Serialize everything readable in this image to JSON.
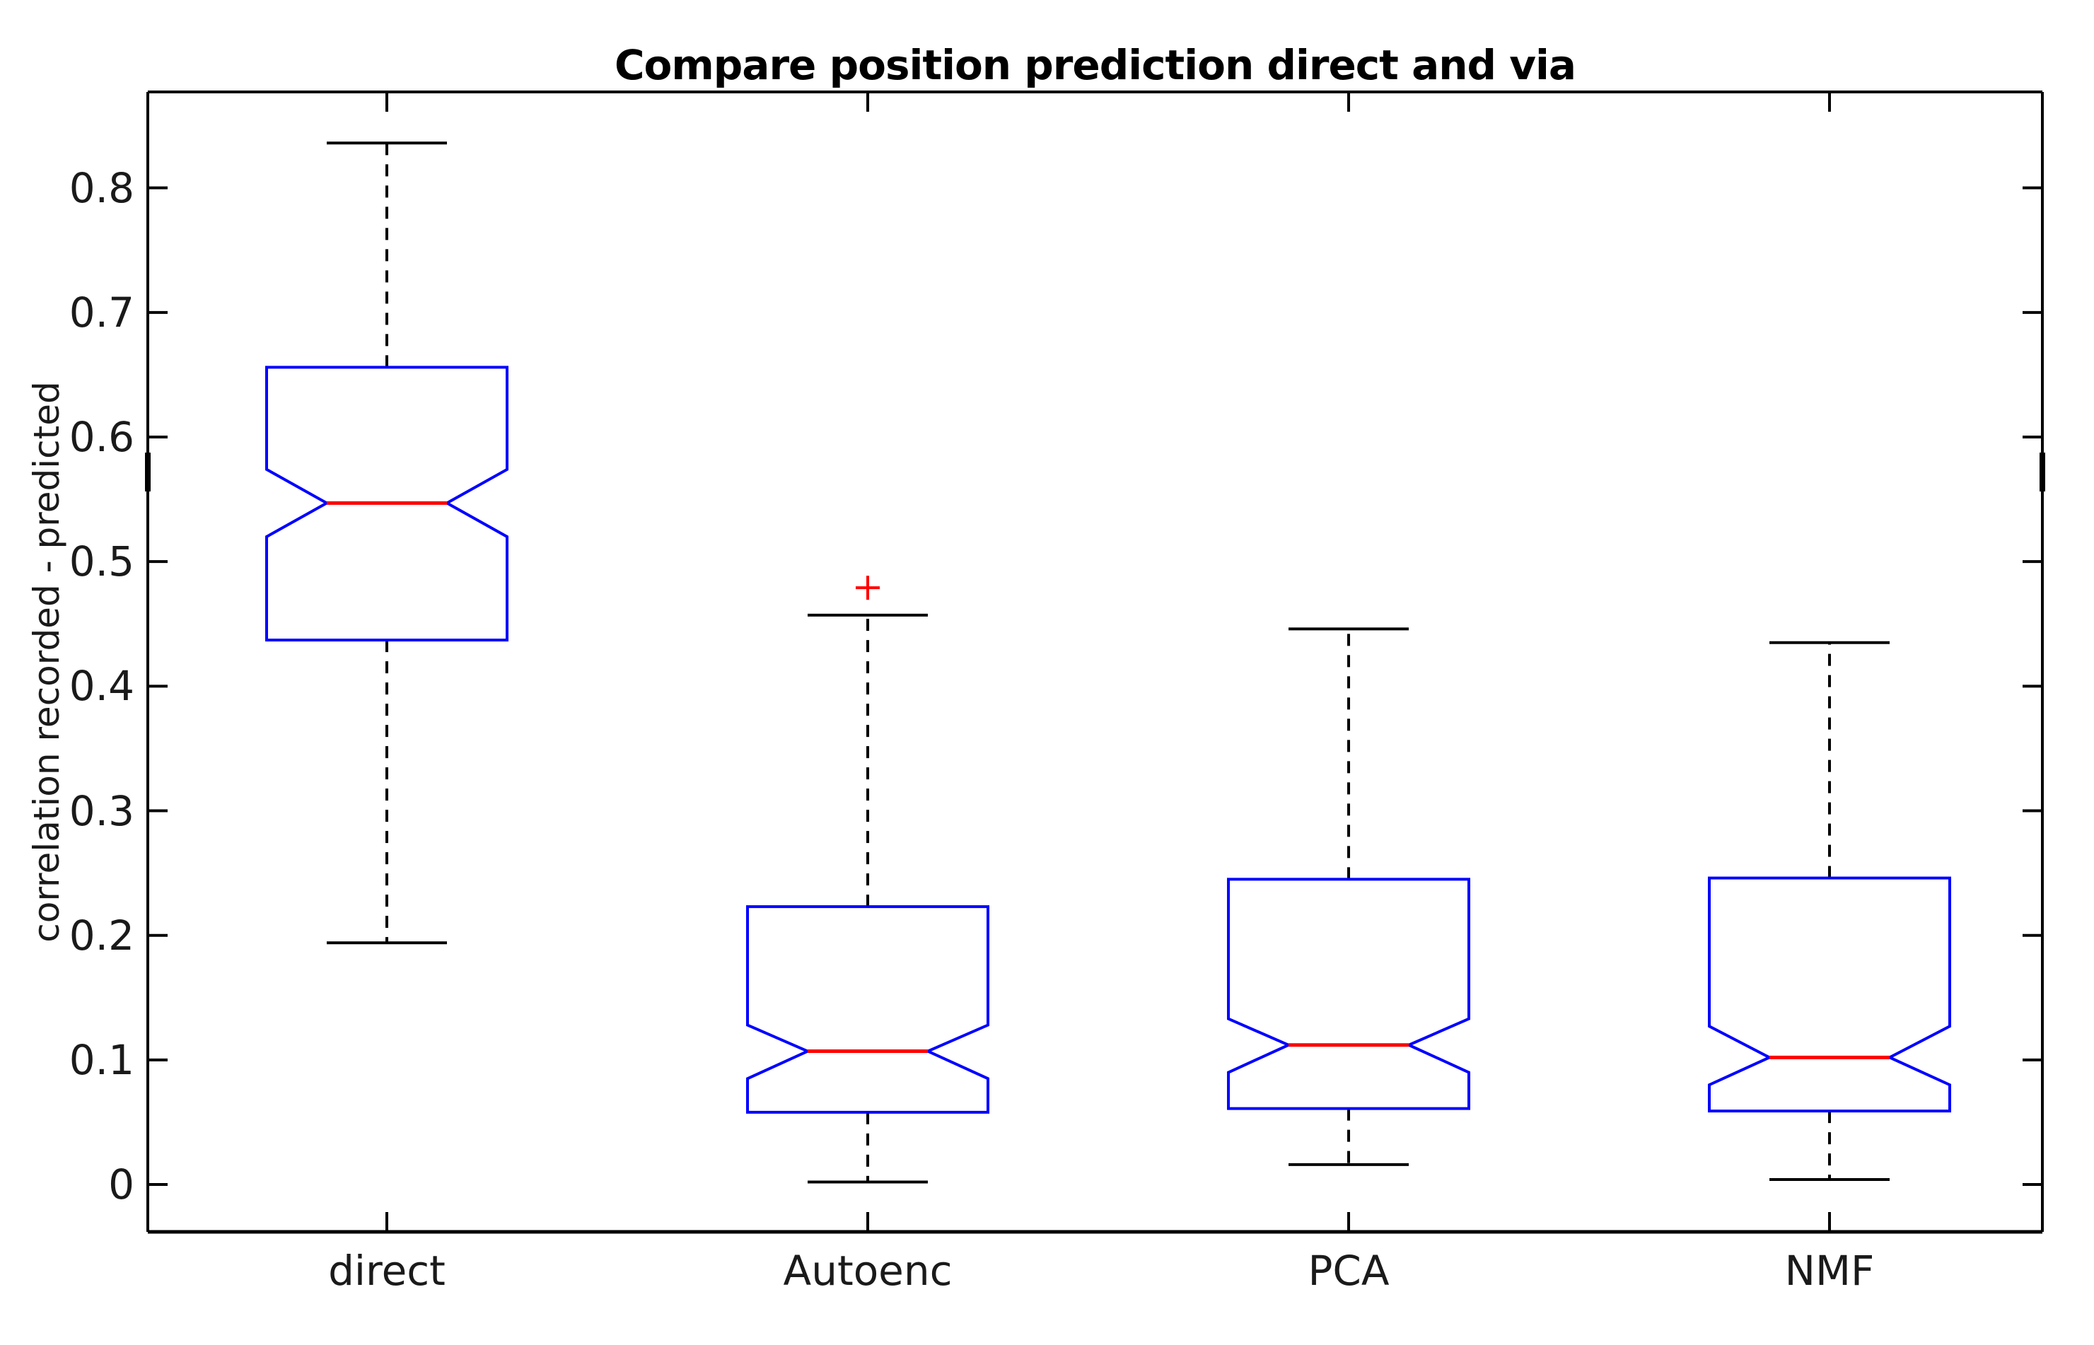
{
  "chart_data": {
    "type": "box",
    "title": "Compare position prediction direct and via",
    "ylabel": "correlation recorded - predicted",
    "xlabel": "",
    "categories": [
      "direct",
      "Autoenc",
      "PCA",
      "NMF"
    ],
    "yticks": [
      0,
      0.1,
      0.2,
      0.3,
      0.4,
      0.5,
      0.6,
      0.7,
      0.8
    ],
    "ytick_labels": [
      "0",
      "0.1",
      "0.2",
      "0.3",
      "0.4",
      "0.5",
      "0.6",
      "0.7",
      "0.8"
    ],
    "ylim": [
      -0.038,
      0.877
    ],
    "grid": false,
    "notched": true,
    "outlier_marker": "+",
    "series": [
      {
        "name": "direct",
        "whisker_low": 0.194,
        "q1": 0.437,
        "notch_low": 0.52,
        "median": 0.547,
        "notch_high": 0.574,
        "q3": 0.656,
        "whisker_high": 0.836,
        "outliers": []
      },
      {
        "name": "Autoenc",
        "whisker_low": 0.002,
        "q1": 0.058,
        "notch_low": 0.085,
        "median": 0.107,
        "notch_high": 0.128,
        "q3": 0.223,
        "whisker_high": 0.457,
        "outliers": [
          0.479
        ]
      },
      {
        "name": "PCA",
        "whisker_low": 0.016,
        "q1": 0.061,
        "notch_low": 0.09,
        "median": 0.112,
        "notch_high": 0.133,
        "q3": 0.245,
        "whisker_high": 0.446,
        "outliers": []
      },
      {
        "name": "NMF",
        "whisker_low": 0.004,
        "q1": 0.059,
        "notch_low": 0.08,
        "median": 0.102,
        "notch_high": 0.127,
        "q3": 0.246,
        "whisker_high": 0.435,
        "outliers": []
      }
    ],
    "colors": {
      "box": "#0000ff",
      "median": "#ff0000",
      "whisker": "#000000",
      "cap": "#000000",
      "outlier": "#ff0000",
      "axis": "#000000",
      "background": "#ffffff"
    }
  }
}
